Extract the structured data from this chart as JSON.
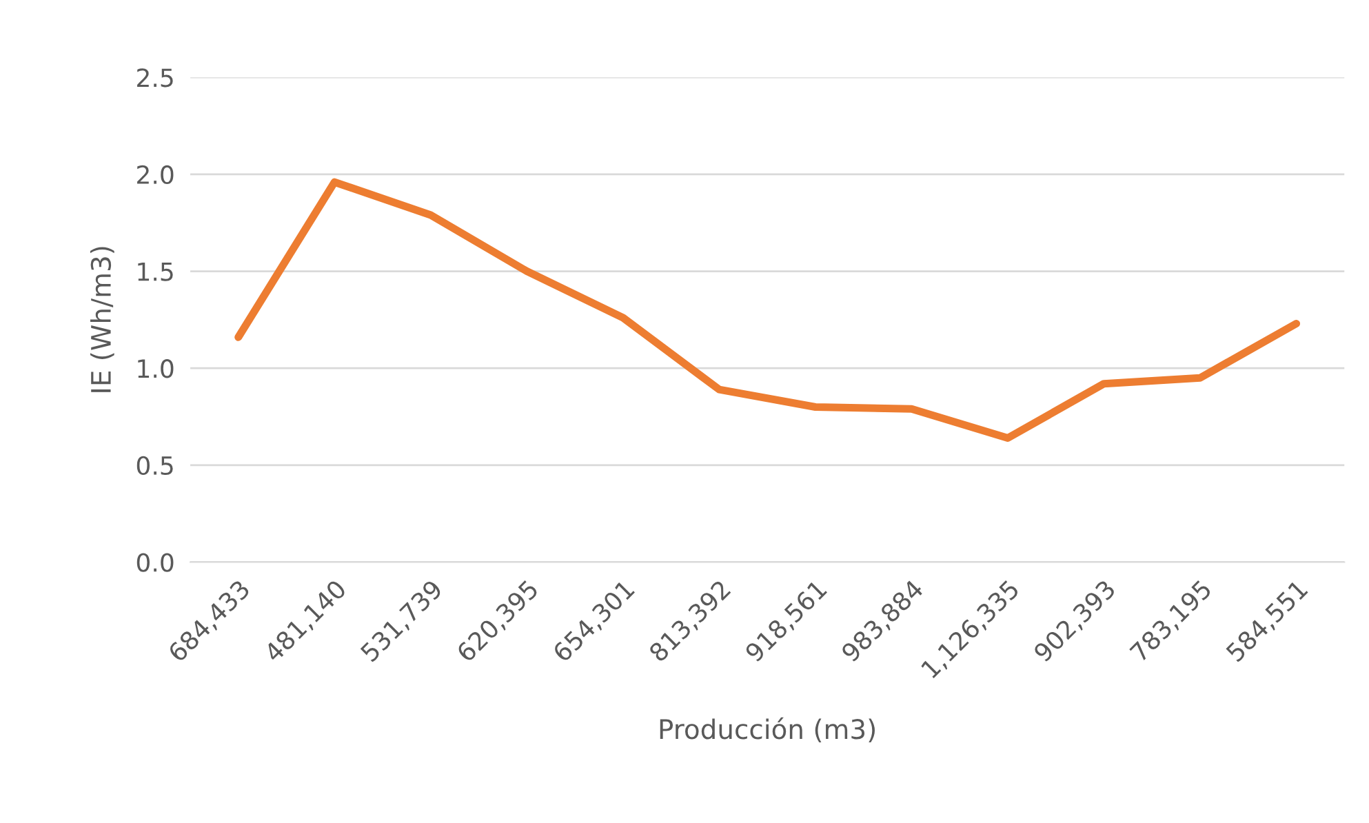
{
  "chart_data": {
    "type": "line",
    "xlabel": "Producción (m3)",
    "ylabel": "IE (Wh/m3)",
    "categories": [
      "684,433",
      "481,140",
      "531,739",
      "620,395",
      "654,301",
      "813,392",
      "918,561",
      "983,884",
      "1,126,335",
      "902,393",
      "783,195",
      "584,551"
    ],
    "series": [
      {
        "color": "#ed7d31",
        "values": [
          1.16,
          1.96,
          1.79,
          1.5,
          1.26,
          0.89,
          0.8,
          0.79,
          0.64,
          0.92,
          0.95,
          1.23
        ]
      }
    ],
    "ylim": [
      0,
      2.5
    ],
    "yticks": [
      {
        "value": 0,
        "label": "0.0"
      },
      {
        "value": 0.5,
        "label": "0.5"
      },
      {
        "value": 1,
        "label": "1.0"
      },
      {
        "value": 1.5,
        "label": "1.5"
      },
      {
        "value": 2,
        "label": "2.0"
      },
      {
        "value": 2.5,
        "label": "2.5"
      }
    ],
    "grid": "y",
    "marker": "none",
    "line_style": "solid"
  }
}
